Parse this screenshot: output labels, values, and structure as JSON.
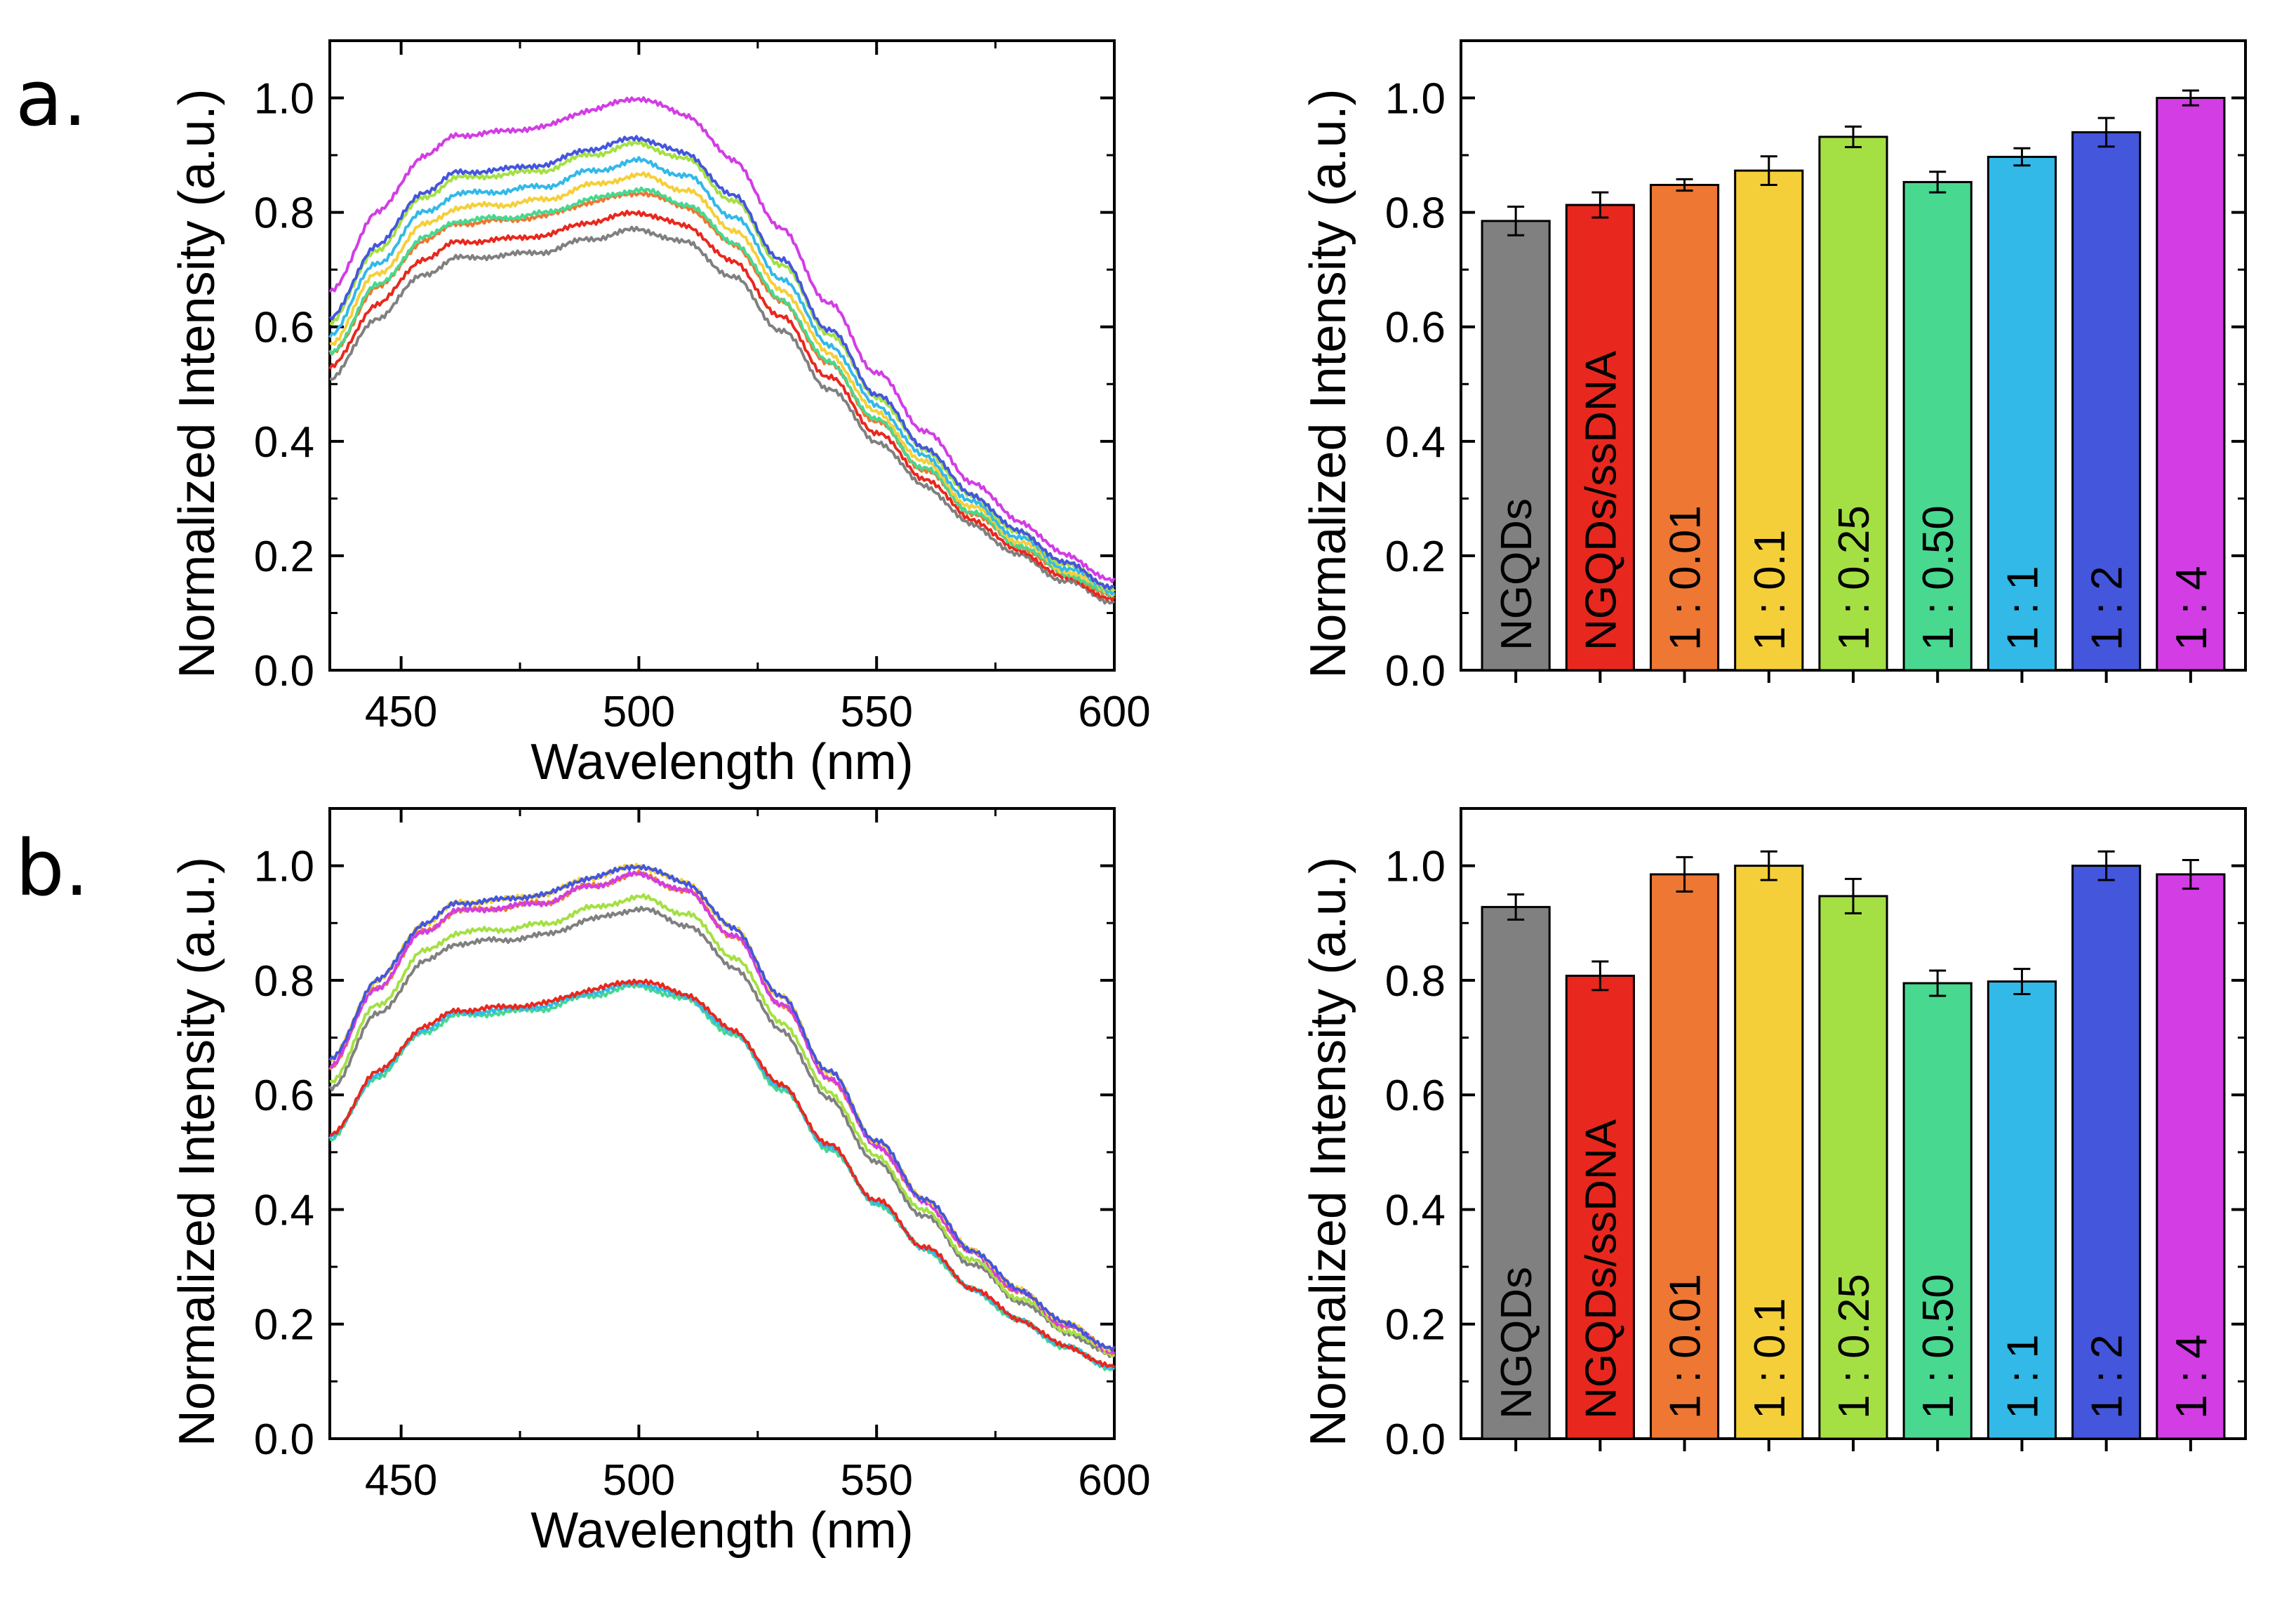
{
  "panel_labels": [
    "a.",
    "b."
  ],
  "colors": {
    "NGQDs": "#808080",
    "NGQDs/ssDNA": "#e8281e",
    "1 : 0.01": "#ee7733",
    "1 : 0.1": "#f5cf3a",
    "1 : 0.25": "#a4e044",
    "1 : 0.50": "#48d890",
    "1 : 1": "#33b9e8",
    "1 : 2": "#4456dc",
    "1 : 4": "#d23de4"
  },
  "chart_data": [
    {
      "id": "a-spectra",
      "type": "line",
      "xlabel": "Wavelength (nm)",
      "ylabel": "Normalized Intensity (a.u.)",
      "xlim": [
        435,
        600
      ],
      "ylim": [
        0,
        1.1
      ],
      "xticks": [
        "450",
        "500",
        "550",
        "600"
      ],
      "yticks": [
        "0.0",
        "0.2",
        "0.4",
        "0.6",
        "0.8",
        "1.0"
      ],
      "series": [
        {
          "name": "NGQDs",
          "peak": 0.77
        },
        {
          "name": "NGQDs/ssDNA",
          "peak": 0.8
        },
        {
          "name": "1 : 0.01",
          "peak": 0.835
        },
        {
          "name": "1 : 0.1",
          "peak": 0.865
        },
        {
          "name": "1 : 0.25",
          "peak": 0.92
        },
        {
          "name": "1 : 0.50",
          "peak": 0.84
        },
        {
          "name": "1 : 1",
          "peak": 0.89
        },
        {
          "name": "1 : 2",
          "peak": 0.93
        },
        {
          "name": "1 : 4",
          "peak": 1.0
        }
      ]
    },
    {
      "id": "a-bars",
      "type": "bar",
      "ylabel": "Normalized Intensity (a.u.)",
      "ylim": [
        0,
        1.1
      ],
      "yticks": [
        "0.0",
        "0.2",
        "0.4",
        "0.6",
        "0.8",
        "1.0"
      ],
      "categories": [
        "NGQDs",
        "NGQDs/ssDNA",
        "1 : 0.01",
        "1 : 0.1",
        "1 : 0.25",
        "1 : 0.50",
        "1 : 1",
        "1 : 2",
        "1 : 4"
      ],
      "values": [
        0.785,
        0.813,
        0.848,
        0.873,
        0.932,
        0.853,
        0.897,
        0.94,
        1.0
      ],
      "errors": [
        0.025,
        0.022,
        0.01,
        0.025,
        0.018,
        0.018,
        0.015,
        0.025,
        0.013
      ]
    },
    {
      "id": "b-spectra",
      "type": "line",
      "xlabel": "Wavelength (nm)",
      "ylabel": "Normalized Intensity (a.u.)",
      "xlim": [
        435,
        600
      ],
      "ylim": [
        0,
        1.1
      ],
      "xticks": [
        "450",
        "500",
        "550",
        "600"
      ],
      "yticks": [
        "0.0",
        "0.2",
        "0.4",
        "0.6",
        "0.8",
        "1.0"
      ],
      "series": [
        {
          "name": "NGQDs",
          "peak": 0.925
        },
        {
          "name": "NGQDs/ssDNA",
          "peak": 0.8
        },
        {
          "name": "1 : 0.01",
          "peak": 0.985
        },
        {
          "name": "1 : 0.1",
          "peak": 1.0
        },
        {
          "name": "1 : 0.25",
          "peak": 0.945
        },
        {
          "name": "1 : 0.50",
          "peak": 0.79
        },
        {
          "name": "1 : 1",
          "peak": 0.795
        },
        {
          "name": "1 : 2",
          "peak": 1.0
        },
        {
          "name": "1 : 4",
          "peak": 0.985
        }
      ]
    },
    {
      "id": "b-bars",
      "type": "bar",
      "ylabel": "Normalized Intensity (a.u.)",
      "ylim": [
        0,
        1.1
      ],
      "yticks": [
        "0.0",
        "0.2",
        "0.4",
        "0.6",
        "0.8",
        "1.0"
      ],
      "categories": [
        "NGQDs",
        "NGQDs/ssDNA",
        "1 : 0.01",
        "1 : 0.1",
        "1 : 0.25",
        "1 : 0.50",
        "1 : 1",
        "1 : 2",
        "1 : 4"
      ],
      "values": [
        0.928,
        0.808,
        0.985,
        1.0,
        0.947,
        0.795,
        0.798,
        1.0,
        0.985
      ],
      "errors": [
        0.022,
        0.025,
        0.03,
        0.025,
        0.03,
        0.022,
        0.022,
        0.025,
        0.025
      ]
    }
  ]
}
